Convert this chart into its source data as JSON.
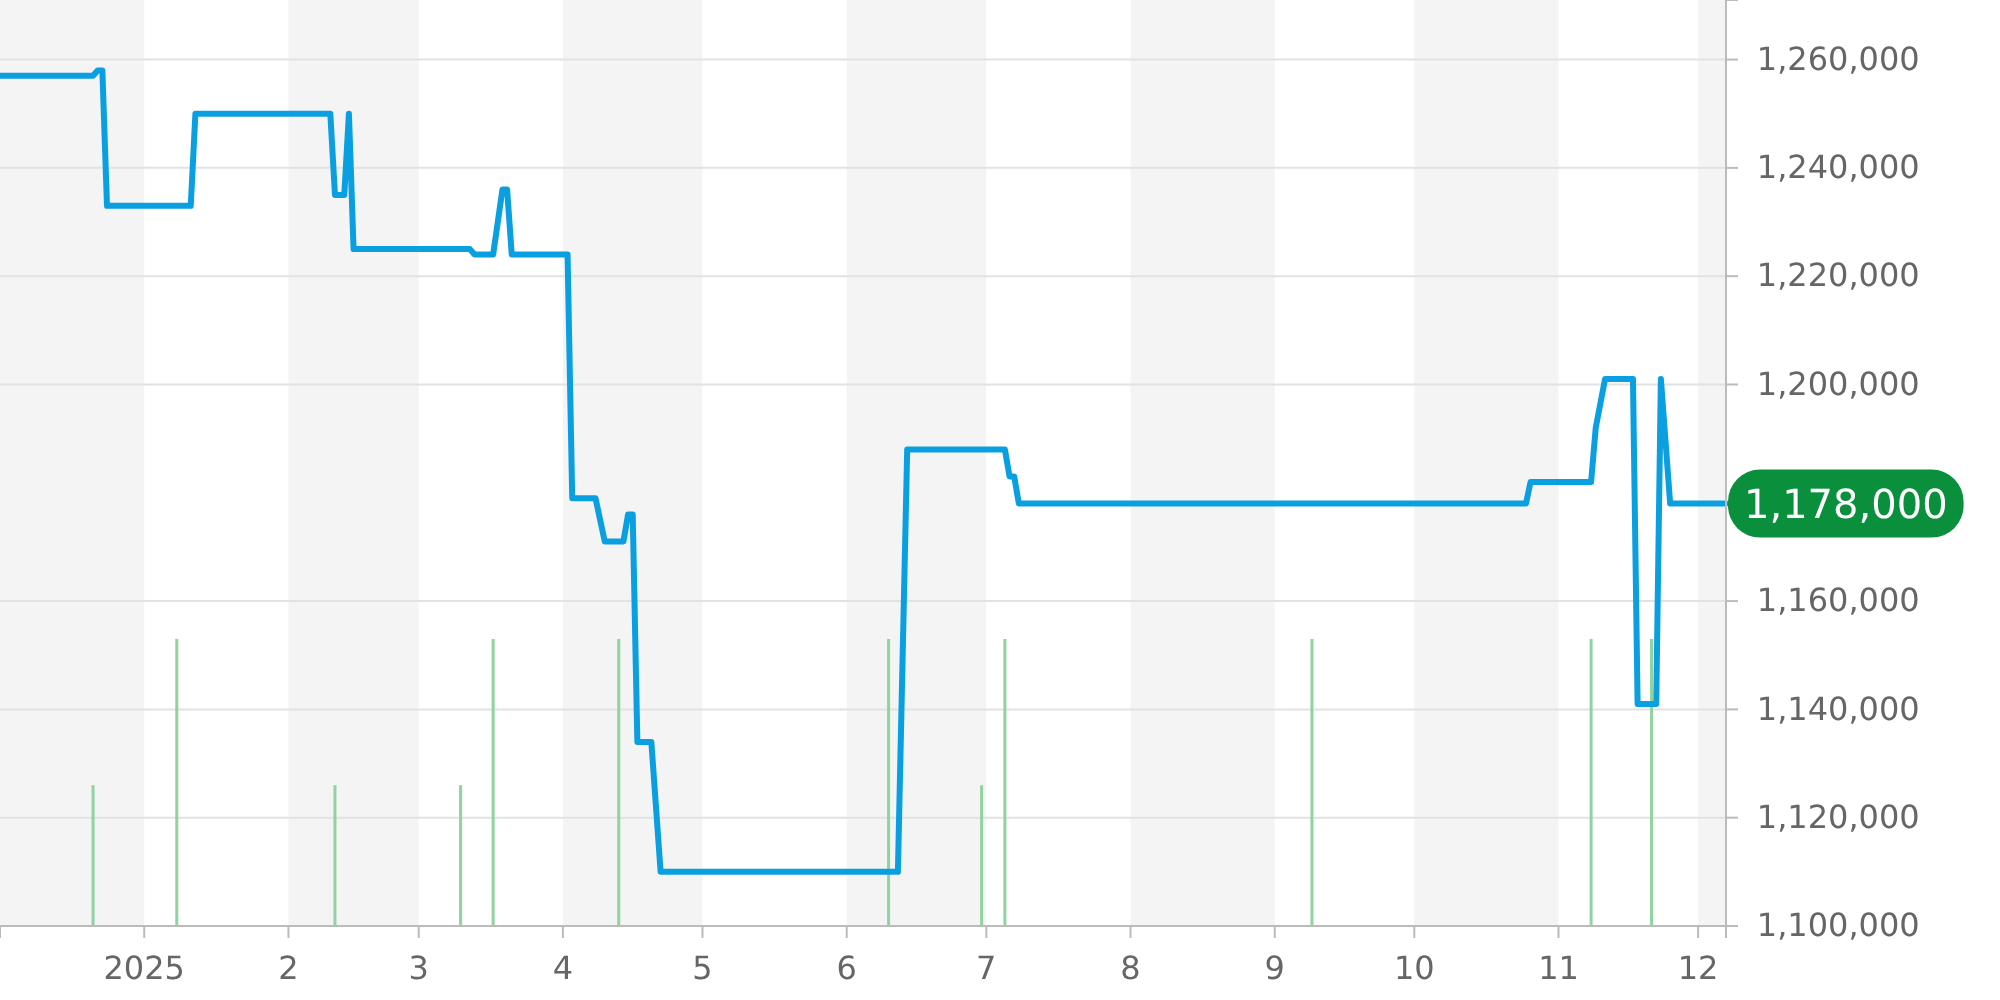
{
  "chart_data": {
    "type": "line",
    "xlim": [
      "2024-12-01",
      "2025-12-07"
    ],
    "ylim": [
      1100000,
      1271000
    ],
    "yticks": [
      {
        "value": 1100000,
        "label": "1,100,000"
      },
      {
        "value": 1120000,
        "label": "1,120,000"
      },
      {
        "value": 1140000,
        "label": "1,140,000"
      },
      {
        "value": 1160000,
        "label": "1,160,000"
      },
      {
        "value": 1200000,
        "label": "1,200,000"
      },
      {
        "value": 1220000,
        "label": "1,220,000"
      },
      {
        "value": 1240000,
        "label": "1,240,000"
      },
      {
        "value": 1260000,
        "label": "1,260,000"
      }
    ],
    "xticks": [
      {
        "value": "2025-01-01",
        "label": "2025"
      },
      {
        "value": "2025-02-01",
        "label": "2"
      },
      {
        "value": "2025-03-01",
        "label": "3"
      },
      {
        "value": "2025-04-01",
        "label": "4"
      },
      {
        "value": "2025-05-01",
        "label": "5"
      },
      {
        "value": "2025-06-01",
        "label": "6"
      },
      {
        "value": "2025-07-01",
        "label": "7"
      },
      {
        "value": "2025-08-01",
        "label": "8"
      },
      {
        "value": "2025-09-01",
        "label": "9"
      },
      {
        "value": "2025-10-01",
        "label": "10"
      },
      {
        "value": "2025-11-01",
        "label": "11"
      },
      {
        "value": "2025-12-01",
        "label": "12"
      }
    ],
    "grid": "y",
    "bands": [
      {
        "axis": "x",
        "from": "2024-12-01",
        "to": "2025-01-01",
        "color": "#f4f4f4"
      },
      {
        "axis": "x",
        "from": "2025-02-01",
        "to": "2025-03-01",
        "color": "#f4f4f4"
      },
      {
        "axis": "x",
        "from": "2025-04-01",
        "to": "2025-05-01",
        "color": "#f4f4f4"
      },
      {
        "axis": "x",
        "from": "2025-06-01",
        "to": "2025-07-01",
        "color": "#f4f4f4"
      },
      {
        "axis": "x",
        "from": "2025-08-01",
        "to": "2025-09-01",
        "color": "#f4f4f4"
      },
      {
        "axis": "x",
        "from": "2025-10-01",
        "to": "2025-11-01",
        "color": "#f4f4f4"
      },
      {
        "axis": "x",
        "from": "2025-12-01",
        "to": "2025-12-07",
        "color": "#f4f4f4"
      }
    ],
    "series": [
      {
        "type": "bar",
        "color": "#8fd39f",
        "x": [
          "2024-12-21",
          "2025-01-08",
          "2025-02-11",
          "2025-03-10",
          "2025-03-17",
          "2025-04-13",
          "2025-06-10",
          "2025-06-30",
          "2025-07-05",
          "2025-09-09",
          "2025-11-08",
          "2025-11-21"
        ],
        "values": [
          1126000,
          1153000,
          1126000,
          1126000,
          1153000,
          1153000,
          1153000,
          1126000,
          1153000,
          1153000,
          1153000,
          1153000
        ]
      },
      {
        "color": "#0a9fe0",
        "x": [
          "2024-12-01",
          "2024-12-21",
          "2024-12-22",
          "2024-12-23",
          "2024-12-24",
          "2025-01-11",
          "2025-01-12",
          "2025-02-10",
          "2025-02-11",
          "2025-02-13",
          "2025-02-14",
          "2025-02-15",
          "2025-03-12",
          "2025-03-13",
          "2025-03-17",
          "2025-03-19",
          "2025-03-20",
          "2025-03-21",
          "2025-04-02",
          "2025-04-03",
          "2025-04-08",
          "2025-04-10",
          "2025-04-14",
          "2025-04-15",
          "2025-04-16",
          "2025-04-17",
          "2025-04-20",
          "2025-04-22",
          "2025-06-12",
          "2025-06-14",
          "2025-07-05",
          "2025-07-06",
          "2025-07-07",
          "2025-07-08",
          "2025-10-25",
          "2025-10-26",
          "2025-11-08",
          "2025-11-09",
          "2025-11-11",
          "2025-11-17",
          "2025-11-18",
          "2025-11-22",
          "2025-11-23",
          "2025-11-25",
          "2025-12-07"
        ],
        "values": [
          1257000,
          1257000,
          1258000,
          1258000,
          1233000,
          1233000,
          1250000,
          1250000,
          1235000,
          1235000,
          1250000,
          1225000,
          1225000,
          1224000,
          1224000,
          1236000,
          1236000,
          1224000,
          1224000,
          1179000,
          1179000,
          1171000,
          1171000,
          1176000,
          1176000,
          1134000,
          1134000,
          1110000,
          1110000,
          1188000,
          1188000,
          1183000,
          1183000,
          1178000,
          1178000,
          1182000,
          1182000,
          1192000,
          1201000,
          1201000,
          1141000,
          1141000,
          1201000,
          1178000,
          1178000
        ]
      }
    ],
    "annotations": [
      {
        "text": "1,178,000",
        "x": "2025-12-07",
        "y": 1178000
      }
    ]
  }
}
